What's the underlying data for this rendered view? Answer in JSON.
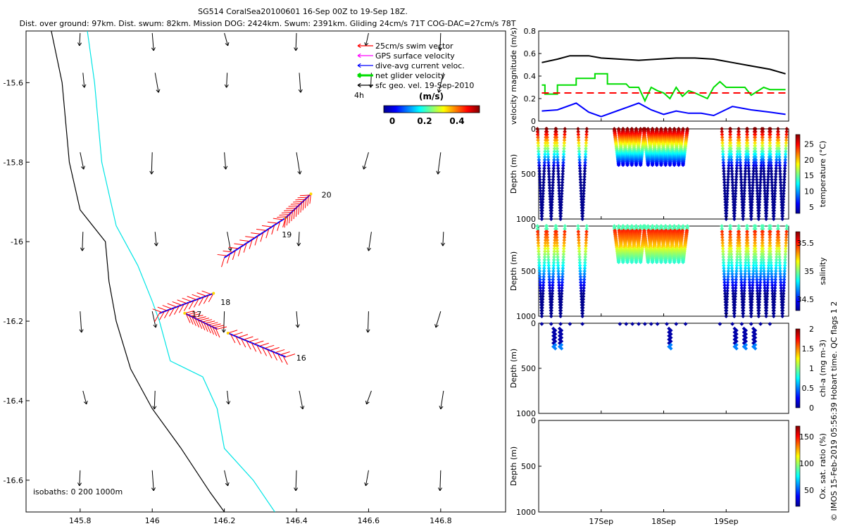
{
  "header": {
    "line1": "SG514 CoralSea20100601 16-Sep 00Z to 19-Sep 18Z.",
    "line2": "Dist. over ground: 97km. Dist. swum: 82km. Mission DOG: 2424km. Swum: 2391km. Gliding 24cm/s 71T COG-DAC=27cm/s 78T"
  },
  "side_caption": "© IMOS 15-Feb-2019 05:56:39 Hobart time. QC flags 1  2",
  "map": {
    "legend": [
      {
        "label": "25cm/s swim vector",
        "color": "#ff0000"
      },
      {
        "label": "GPS surface velocity",
        "color": "#ff00ff"
      },
      {
        "label": "dive-avg current veloc.",
        "color": "#0000ff"
      },
      {
        "label": "net glider velocity",
        "color": "#00dd00"
      },
      {
        "label": "sfc geo. vel. 19-Sep-2010",
        "color": "#000000"
      }
    ],
    "legend_tag": "4h",
    "colorbar": {
      "unit_label": "(m/s)",
      "ticks": [
        "0",
        "0.2",
        "0.4"
      ],
      "colors": [
        "#00008f",
        "#0000ff",
        "#0080ff",
        "#00ffff",
        "#80ff80",
        "#ffff00",
        "#ff8000",
        "#ff0000",
        "#800000"
      ]
    },
    "isobath_label": "isobaths: 0   200  1000m",
    "isobath_colors": {
      "coast": "#000000",
      "iso200": "#00e5e5"
    },
    "day_labels": [
      "20",
      "19",
      "18",
      "17",
      "16"
    ]
  },
  "chart_data": [
    {
      "type": "scatter",
      "title": "map",
      "xlim": [
        145.65,
        146.98
      ],
      "ylim": [
        -16.68,
        -15.47
      ],
      "x_ticks": [
        "145.8",
        "146",
        "146.2",
        "146.4",
        "146.6",
        "146.8"
      ],
      "y_ticks": [
        "-15.6",
        "-15.8",
        "-16",
        "-16.2",
        "-16.4",
        "-16.6"
      ],
      "x_tick_values": [
        145.8,
        146.0,
        146.2,
        146.4,
        146.6,
        146.8
      ],
      "y_tick_values": [
        -15.6,
        -15.8,
        -16.0,
        -16.2,
        -16.4,
        -16.6
      ],
      "track_segments": [
        {
          "day": "16",
          "from": [
            146.37,
            -16.29
          ],
          "to": [
            146.21,
            -16.23
          ]
        },
        {
          "day": "17",
          "from": [
            146.18,
            -16.22
          ],
          "to": [
            146.09,
            -16.18
          ]
        },
        {
          "day": "18",
          "from": [
            146.02,
            -16.18
          ],
          "to": [
            146.17,
            -16.13
          ]
        },
        {
          "day": "19",
          "from": [
            146.2,
            -16.04
          ],
          "to": [
            146.37,
            -15.94
          ]
        },
        {
          "day": "20",
          "from": [
            146.37,
            -15.94
          ],
          "to": [
            146.44,
            -15.88
          ]
        }
      ],
      "isobath_0": [
        [
          145.72,
          -15.47
        ],
        [
          145.75,
          -15.6
        ],
        [
          145.77,
          -15.8
        ],
        [
          145.8,
          -15.92
        ],
        [
          145.87,
          -16.0
        ],
        [
          145.88,
          -16.1
        ],
        [
          145.9,
          -16.2
        ],
        [
          145.94,
          -16.32
        ],
        [
          146.0,
          -16.42
        ],
        [
          146.08,
          -16.52
        ],
        [
          146.16,
          -16.63
        ],
        [
          146.2,
          -16.68
        ]
      ],
      "isobath_200": [
        [
          145.82,
          -15.47
        ],
        [
          145.84,
          -15.6
        ],
        [
          145.86,
          -15.8
        ],
        [
          145.9,
          -15.96
        ],
        [
          145.96,
          -16.06
        ],
        [
          146.0,
          -16.15
        ],
        [
          146.02,
          -16.2
        ],
        [
          146.05,
          -16.3
        ],
        [
          146.14,
          -16.34
        ],
        [
          146.18,
          -16.42
        ],
        [
          146.2,
          -16.52
        ],
        [
          146.28,
          -16.6
        ],
        [
          146.34,
          -16.68
        ]
      ]
    },
    {
      "type": "line",
      "ylabel": "velocity magnitude (m/s)",
      "y_ticks": [
        "0",
        "0.2",
        "0.4",
        "0.6",
        "0.8"
      ],
      "ylim": [
        0,
        0.8
      ],
      "x_domain_days": [
        16.0,
        20.0
      ],
      "series": [
        {
          "color": "#000000",
          "x": [
            16.05,
            16.3,
            16.5,
            16.8,
            17.0,
            17.3,
            17.6,
            17.9,
            18.2,
            18.5,
            18.8,
            19.1,
            19.4,
            19.7,
            19.95
          ],
          "values": [
            0.52,
            0.55,
            0.58,
            0.58,
            0.56,
            0.55,
            0.54,
            0.55,
            0.56,
            0.56,
            0.55,
            0.52,
            0.49,
            0.46,
            0.42
          ]
        },
        {
          "color": "#00dd00",
          "x": [
            16.05,
            16.1,
            16.1,
            16.3,
            16.3,
            16.6,
            16.6,
            16.9,
            16.9,
            17.1,
            17.1,
            17.4,
            17.45,
            17.6,
            17.7,
            17.8,
            17.9,
            18.0,
            18.1,
            18.2,
            18.3,
            18.4,
            18.5,
            18.7,
            18.8,
            18.9,
            19.0,
            19.3,
            19.4,
            19.6,
            19.7,
            19.95
          ],
          "values": [
            0.32,
            0.32,
            0.24,
            0.24,
            0.32,
            0.32,
            0.38,
            0.38,
            0.42,
            0.42,
            0.33,
            0.33,
            0.3,
            0.3,
            0.18,
            0.3,
            0.27,
            0.25,
            0.2,
            0.3,
            0.22,
            0.27,
            0.25,
            0.2,
            0.3,
            0.35,
            0.3,
            0.3,
            0.23,
            0.3,
            0.28,
            0.28
          ]
        },
        {
          "color": "#ff0000",
          "dash": "10,6",
          "x": [
            16.05,
            19.95
          ],
          "values": [
            0.25,
            0.25
          ]
        },
        {
          "color": "#0000ff",
          "x": [
            16.05,
            16.3,
            16.6,
            16.8,
            17.0,
            17.3,
            17.6,
            17.8,
            18.0,
            18.2,
            18.4,
            18.6,
            18.8,
            19.1,
            19.4,
            19.7,
            19.95
          ],
          "values": [
            0.09,
            0.1,
            0.16,
            0.08,
            0.04,
            0.1,
            0.16,
            0.1,
            0.06,
            0.09,
            0.07,
            0.07,
            0.05,
            0.13,
            0.1,
            0.08,
            0.06
          ]
        }
      ]
    },
    {
      "type": "scatter",
      "ylabel": "Depth (m)",
      "clabel": "temperature (°C)",
      "y_ticks": [
        "0",
        "500",
        "1000"
      ],
      "ylim": [
        0,
        1000
      ],
      "c_ticks": [
        "5",
        "10",
        "15",
        "20",
        "25"
      ],
      "clim": [
        3,
        28
      ],
      "deep_dives": [
        16.05,
        16.2,
        16.35,
        16.7,
        19.0,
        19.13,
        19.27,
        19.4,
        19.52,
        19.64,
        19.76,
        19.9
      ],
      "shallow_dives": [
        17.28,
        17.35,
        17.42,
        17.49,
        17.56,
        17.63,
        17.75,
        17.82,
        17.89,
        17.96,
        18.03,
        18.1,
        18.17,
        18.24,
        18.31
      ],
      "deep_depth": 1000,
      "shallow_depth": 400
    },
    {
      "type": "scatter",
      "ylabel": "Depth (m)",
      "clabel": "salinity",
      "y_ticks": [
        "0",
        "500",
        "1000"
      ],
      "ylim": [
        0,
        1000
      ],
      "c_ticks": [
        "34.5",
        "35",
        "35.5"
      ],
      "clim": [
        34.3,
        35.7
      ],
      "deep_dives": [
        16.05,
        16.2,
        16.35,
        16.7,
        19.0,
        19.13,
        19.27,
        19.4,
        19.52,
        19.64,
        19.76,
        19.9
      ],
      "shallow_dives": [
        17.28,
        17.35,
        17.42,
        17.49,
        17.56,
        17.63,
        17.75,
        17.82,
        17.89,
        17.96,
        18.03,
        18.1,
        18.17,
        18.24,
        18.31
      ],
      "deep_depth": 1000,
      "shallow_depth": 400
    },
    {
      "type": "scatter",
      "ylabel": "Depth (m)",
      "clabel": "chl-a (mg m-3)",
      "y_ticks": [
        "0",
        "500",
        "1000"
      ],
      "ylim": [
        0,
        1000
      ],
      "c_ticks": [
        "0",
        "0.5",
        "1",
        "1.5",
        "2"
      ],
      "clim": [
        0,
        2
      ],
      "profiles": [
        16.05,
        16.2,
        16.35,
        16.5,
        16.7,
        17.3,
        17.4,
        17.5,
        17.6,
        17.7,
        17.8,
        17.9,
        18.05,
        18.2,
        18.35,
        18.9,
        19.1,
        19.25,
        19.4,
        19.55,
        19.7
      ],
      "deep_profiles": [
        16.25,
        16.35,
        18.1,
        19.15,
        19.3,
        19.45
      ]
    },
    {
      "type": "scatter",
      "ylabel": "Depth (m)",
      "clabel": "Ox. sat. ratio (%)",
      "y_ticks": [
        "0",
        "500",
        "1000"
      ],
      "ylim": [
        0,
        1000
      ],
      "c_ticks": [
        "50",
        "100",
        "150"
      ],
      "clim": [
        20,
        170
      ],
      "x_ticks": [
        "17Sep",
        "18Sep",
        "19Sep"
      ],
      "x_tick_values": [
        17,
        18,
        19
      ]
    }
  ]
}
